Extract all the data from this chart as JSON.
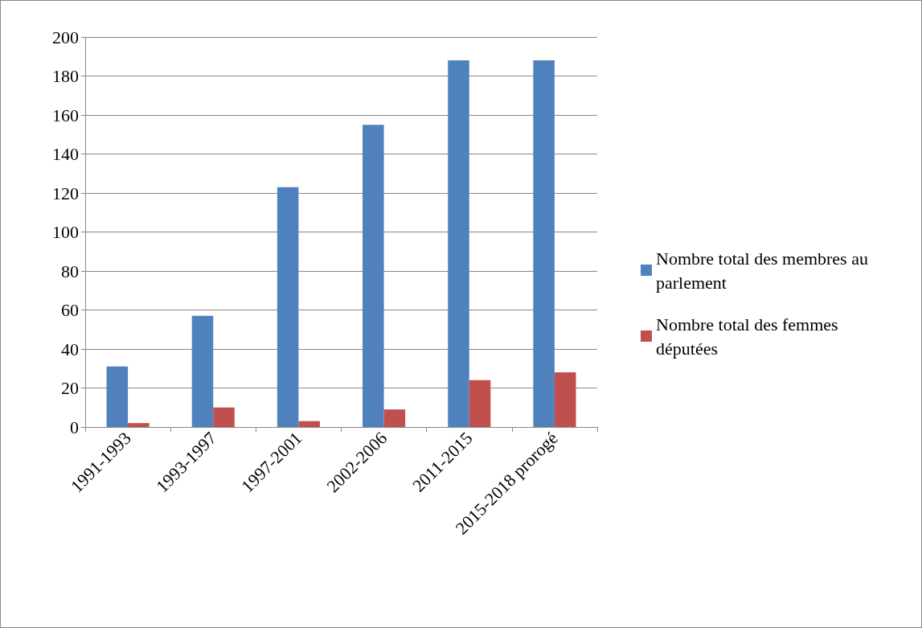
{
  "chart_data": {
    "type": "bar",
    "categories": [
      "1991-1993",
      "1993-1997",
      "1997-2001",
      "2002-2006",
      "2011-2015",
      "2015-2018 prorogé"
    ],
    "series": [
      {
        "name": "Nombre total des membres au parlement",
        "color": "#4f81bd",
        "values": [
          31,
          57,
          123,
          155,
          188,
          188
        ]
      },
      {
        "name": "Nombre total des femmes députées",
        "color": "#c0504d",
        "values": [
          2,
          10,
          3,
          9,
          24,
          28
        ]
      }
    ],
    "ylim": [
      0,
      200
    ],
    "yticks": [
      0,
      20,
      40,
      60,
      80,
      100,
      120,
      140,
      160,
      180,
      200
    ],
    "grid": "y",
    "legend": "right"
  }
}
